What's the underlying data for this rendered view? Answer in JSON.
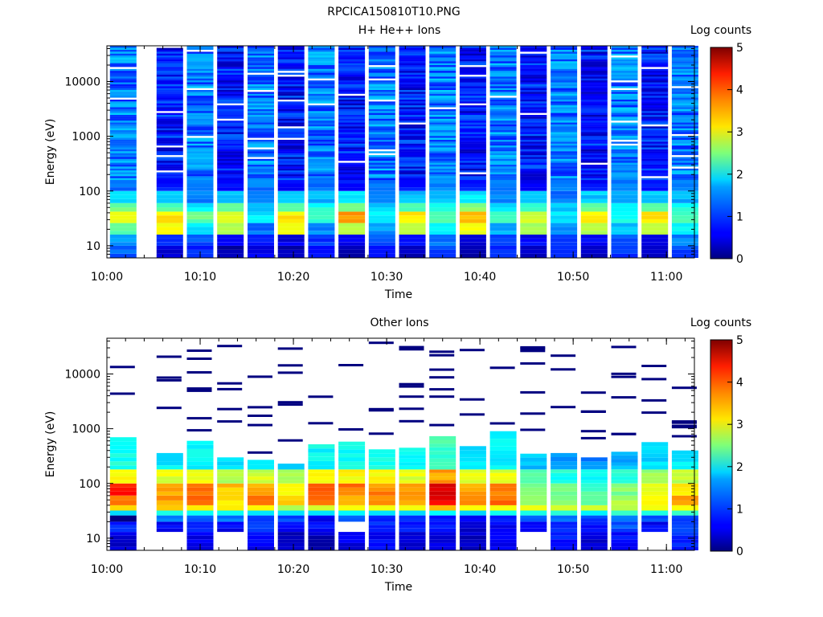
{
  "figure": {
    "title": "RPCICA150810T10.PNG"
  },
  "chart_data": [
    {
      "type": "heatmap",
      "title": "H+ He++ Ions",
      "xlabel": "Time",
      "ylabel": "Energy (eV)",
      "y_scale": "log",
      "xlim": [
        "10:00",
        "11:03"
      ],
      "ylim": [
        6,
        45000
      ],
      "x_ticks": [
        "10:00",
        "10:10",
        "10:20",
        "10:30",
        "10:40",
        "10:50",
        "11:00"
      ],
      "y_ticks": [
        "10",
        "100",
        "1000",
        "10000"
      ],
      "time_columns": [
        "10:01:45",
        "10:06:45",
        "10:10:00",
        "10:13:15",
        "10:16:30",
        "10:19:45",
        "10:23:00",
        "10:26:15",
        "10:29:30",
        "10:32:45",
        "10:36:00",
        "10:39:15",
        "10:42:30",
        "10:45:45",
        "10:49:00",
        "10:52:15",
        "10:55:30",
        "10:58:45",
        "11:02:00"
      ],
      "energy_band_bottoms_eV": [
        6,
        10,
        16,
        26,
        42,
        60,
        100
      ],
      "energy_band_counts_log": [
        [
          1.1,
          1.4,
          2.3,
          3.0,
          2.4,
          1.7,
          1.2
        ],
        [
          0.4,
          0.9,
          3.0,
          3.2,
          2.3,
          1.6,
          0.7
        ],
        [
          0.8,
          1.0,
          1.8,
          2.4,
          1.8,
          1.2,
          1.2
        ],
        [
          0.2,
          0.6,
          2.7,
          3.0,
          2.3,
          1.6,
          0.6
        ],
        [
          0.5,
          0.7,
          1.2,
          1.8,
          1.6,
          1.2,
          1.2
        ],
        [
          0.3,
          0.5,
          3.0,
          3.2,
          2.4,
          1.7,
          0.7
        ],
        [
          0.6,
          0.9,
          1.3,
          2.1,
          2.0,
          1.5,
          1.2
        ],
        [
          0.2,
          0.5,
          2.8,
          3.7,
          2.5,
          1.7,
          0.7
        ],
        [
          0.8,
          1.0,
          1.4,
          1.9,
          1.7,
          1.3,
          1.2
        ],
        [
          0.3,
          0.6,
          2.9,
          3.2,
          2.3,
          1.6,
          0.7
        ],
        [
          0.9,
          1.2,
          1.8,
          2.2,
          2.0,
          1.6,
          1.3
        ],
        [
          0.2,
          0.5,
          3.0,
          3.4,
          2.5,
          1.8,
          0.7
        ],
        [
          0.8,
          1.0,
          1.5,
          2.1,
          1.8,
          1.3,
          1.2
        ],
        [
          0.3,
          0.6,
          2.6,
          2.9,
          2.2,
          1.5,
          0.6
        ],
        [
          0.8,
          1.0,
          1.3,
          1.8,
          1.6,
          1.2,
          1.2
        ],
        [
          0.3,
          0.6,
          2.8,
          3.1,
          2.3,
          1.6,
          0.7
        ],
        [
          0.9,
          1.1,
          1.6,
          2.0,
          1.8,
          1.4,
          1.2
        ],
        [
          0.3,
          0.6,
          2.9,
          3.2,
          2.4,
          1.6,
          0.7
        ],
        [
          1.0,
          1.3,
          1.9,
          2.3,
          2.0,
          1.5,
          1.2
        ]
      ],
      "high_energy_counts_log": "about 0.5 to 1.5 (dark to mid blue) at all times above 100 eV",
      "colorbar": {
        "label": "Log counts",
        "range": [
          0,
          5
        ],
        "ticks": [
          "0",
          "1",
          "2",
          "3",
          "4",
          "5"
        ]
      }
    },
    {
      "type": "heatmap",
      "title": "Other Ions",
      "xlabel": "Time",
      "ylabel": "Energy (eV)",
      "y_scale": "log",
      "xlim": [
        "10:00",
        "11:03"
      ],
      "ylim": [
        6,
        45000
      ],
      "x_ticks": [
        "10:00",
        "10:10",
        "10:20",
        "10:30",
        "10:40",
        "10:50",
        "11:00"
      ],
      "y_ticks": [
        "10",
        "100",
        "1000",
        "10000"
      ],
      "time_columns": [
        "10:01:45",
        "10:06:45",
        "10:10:00",
        "10:13:15",
        "10:16:30",
        "10:19:45",
        "10:23:00",
        "10:26:15",
        "10:29:30",
        "10:32:45",
        "10:36:00",
        "10:39:15",
        "10:42:30",
        "10:45:45",
        "10:49:00",
        "10:52:15",
        "10:55:30",
        "10:58:45",
        "11:02:00"
      ],
      "spectrum_top_eV": [
        700,
        360,
        600,
        300,
        270,
        230,
        520,
        580,
        420,
        450,
        730,
        480,
        900,
        350,
        360,
        300,
        380,
        570,
        400
      ],
      "energy_band_bottoms_eV": [
        6,
        13,
        20,
        26,
        32,
        40,
        60,
        100,
        180
      ],
      "energy_band_counts_log": [
        [
          0.4,
          0.8,
          0.0,
          1.7,
          3.2,
          3.9,
          4.3,
          3.2,
          2.0
        ],
        [
          null,
          0.6,
          1.2,
          2.0,
          3.3,
          3.6,
          3.6,
          3.0,
          1.8
        ],
        [
          0.5,
          0.8,
          1.0,
          1.8,
          3.3,
          3.8,
          3.8,
          3.0,
          1.9
        ],
        [
          null,
          0.6,
          1.2,
          2.0,
          3.2,
          3.3,
          3.4,
          2.8,
          1.8
        ],
        [
          0.6,
          0.9,
          1.0,
          1.8,
          3.1,
          3.8,
          3.5,
          2.9,
          1.9
        ],
        [
          0.3,
          0.6,
          1.0,
          1.6,
          2.8,
          3.3,
          3.2,
          2.7,
          1.7
        ],
        [
          0.3,
          0.7,
          0.6,
          1.7,
          3.0,
          3.8,
          4.0,
          3.2,
          1.9
        ],
        [
          0.5,
          null,
          1.0,
          1.8,
          3.0,
          3.6,
          3.8,
          3.1,
          1.9
        ],
        [
          0.6,
          0.8,
          0.7,
          1.6,
          3.1,
          3.7,
          3.7,
          3.1,
          1.9
        ],
        [
          0.4,
          0.8,
          0.9,
          1.8,
          3.2,
          3.6,
          3.6,
          3.0,
          1.9
        ],
        [
          0.5,
          0.7,
          0.7,
          1.8,
          3.4,
          4.4,
          4.5,
          3.6,
          2.2
        ],
        [
          0.3,
          0.4,
          0.6,
          1.8,
          3.0,
          3.6,
          3.6,
          3.0,
          1.8
        ],
        [
          0.5,
          0.6,
          0.8,
          1.9,
          3.1,
          3.8,
          3.7,
          3.0,
          1.8
        ],
        [
          null,
          0.6,
          1.0,
          1.9,
          3.0,
          2.6,
          2.5,
          2.3,
          1.6
        ],
        [
          0.7,
          0.9,
          1.1,
          2.0,
          2.9,
          2.6,
          2.4,
          2.0,
          1.4
        ],
        [
          0.4,
          0.7,
          0.9,
          1.9,
          2.8,
          2.4,
          2.2,
          1.9,
          1.3
        ],
        [
          0.7,
          1.0,
          1.1,
          2.1,
          2.9,
          2.7,
          2.5,
          2.1,
          1.5
        ],
        [
          null,
          0.6,
          1.0,
          2.1,
          3.2,
          3.1,
          3.0,
          2.6,
          1.7
        ],
        [
          0.8,
          1.0,
          1.0,
          2.0,
          3.0,
          3.7,
          3.2,
          2.8,
          1.8
        ]
      ],
      "sparse_high_energy_counts_log": "isolated bins of about 0.2 (dark blue) above the main spectrum",
      "colorbar": {
        "label": "Log counts",
        "range": [
          0,
          5
        ],
        "ticks": [
          "0",
          "1",
          "2",
          "3",
          "4",
          "5"
        ]
      }
    }
  ]
}
